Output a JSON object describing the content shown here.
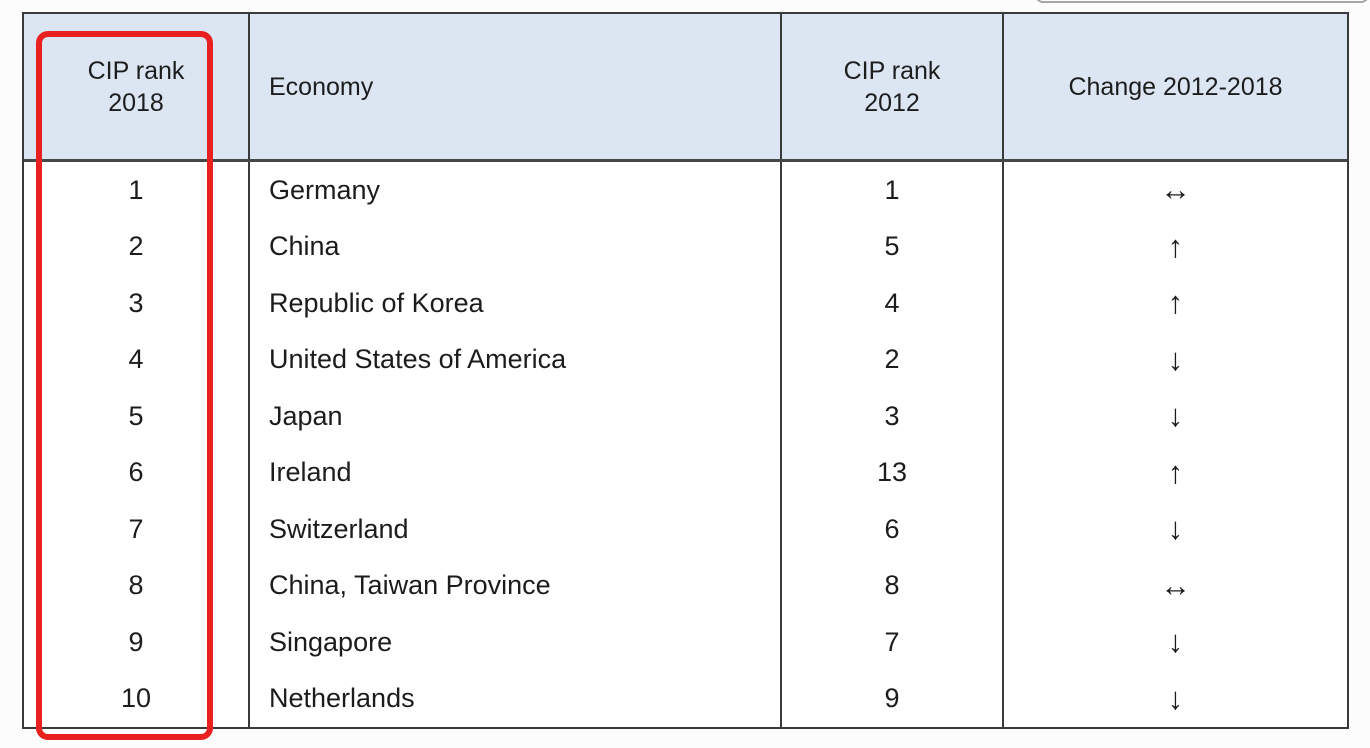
{
  "table": {
    "headers": [
      {
        "label": "CIP rank 2018"
      },
      {
        "label": "Economy"
      },
      {
        "label": "CIP rank 2012"
      },
      {
        "label": "Change 2012-2018"
      }
    ],
    "rows": [
      {
        "rank_2018": "1",
        "economy": "Germany",
        "rank_2012": "1",
        "change": "↔",
        "change_icon": "left-right-arrow"
      },
      {
        "rank_2018": "2",
        "economy": "China",
        "rank_2012": "5",
        "change": "↑",
        "change_icon": "up-arrow"
      },
      {
        "rank_2018": "3",
        "economy": "Republic of Korea",
        "rank_2012": "4",
        "change": "↑",
        "change_icon": "up-arrow"
      },
      {
        "rank_2018": "4",
        "economy": "United States of America",
        "rank_2012": "2",
        "change": "↓",
        "change_icon": "down-arrow"
      },
      {
        "rank_2018": "5",
        "economy": "Japan",
        "rank_2012": "3",
        "change": "↓",
        "change_icon": "down-arrow"
      },
      {
        "rank_2018": "6",
        "economy": "Ireland",
        "rank_2012": "13",
        "change": "↑",
        "change_icon": "up-arrow"
      },
      {
        "rank_2018": "7",
        "economy": "Switzerland",
        "rank_2012": "6",
        "change": "↓",
        "change_icon": "down-arrow"
      },
      {
        "rank_2018": "8",
        "economy": "China, Taiwan Province",
        "rank_2012": "8",
        "change": "↔",
        "change_icon": "left-right-arrow"
      },
      {
        "rank_2018": "9",
        "economy": "Singapore",
        "rank_2012": "7",
        "change": "↓",
        "change_icon": "down-arrow"
      },
      {
        "rank_2018": "10",
        "economy": "Netherlands",
        "rank_2012": "9",
        "change": "↓",
        "change_icon": "down-arrow"
      }
    ]
  },
  "annotation": {
    "highlighted_column": "CIP rank 2018",
    "highlight_color": "#e8201f"
  },
  "colors": {
    "header_background": "#dce6f2",
    "table_border": "#3a3a3a",
    "text": "#1c1c1c",
    "page_background": "#fcfcfc"
  }
}
